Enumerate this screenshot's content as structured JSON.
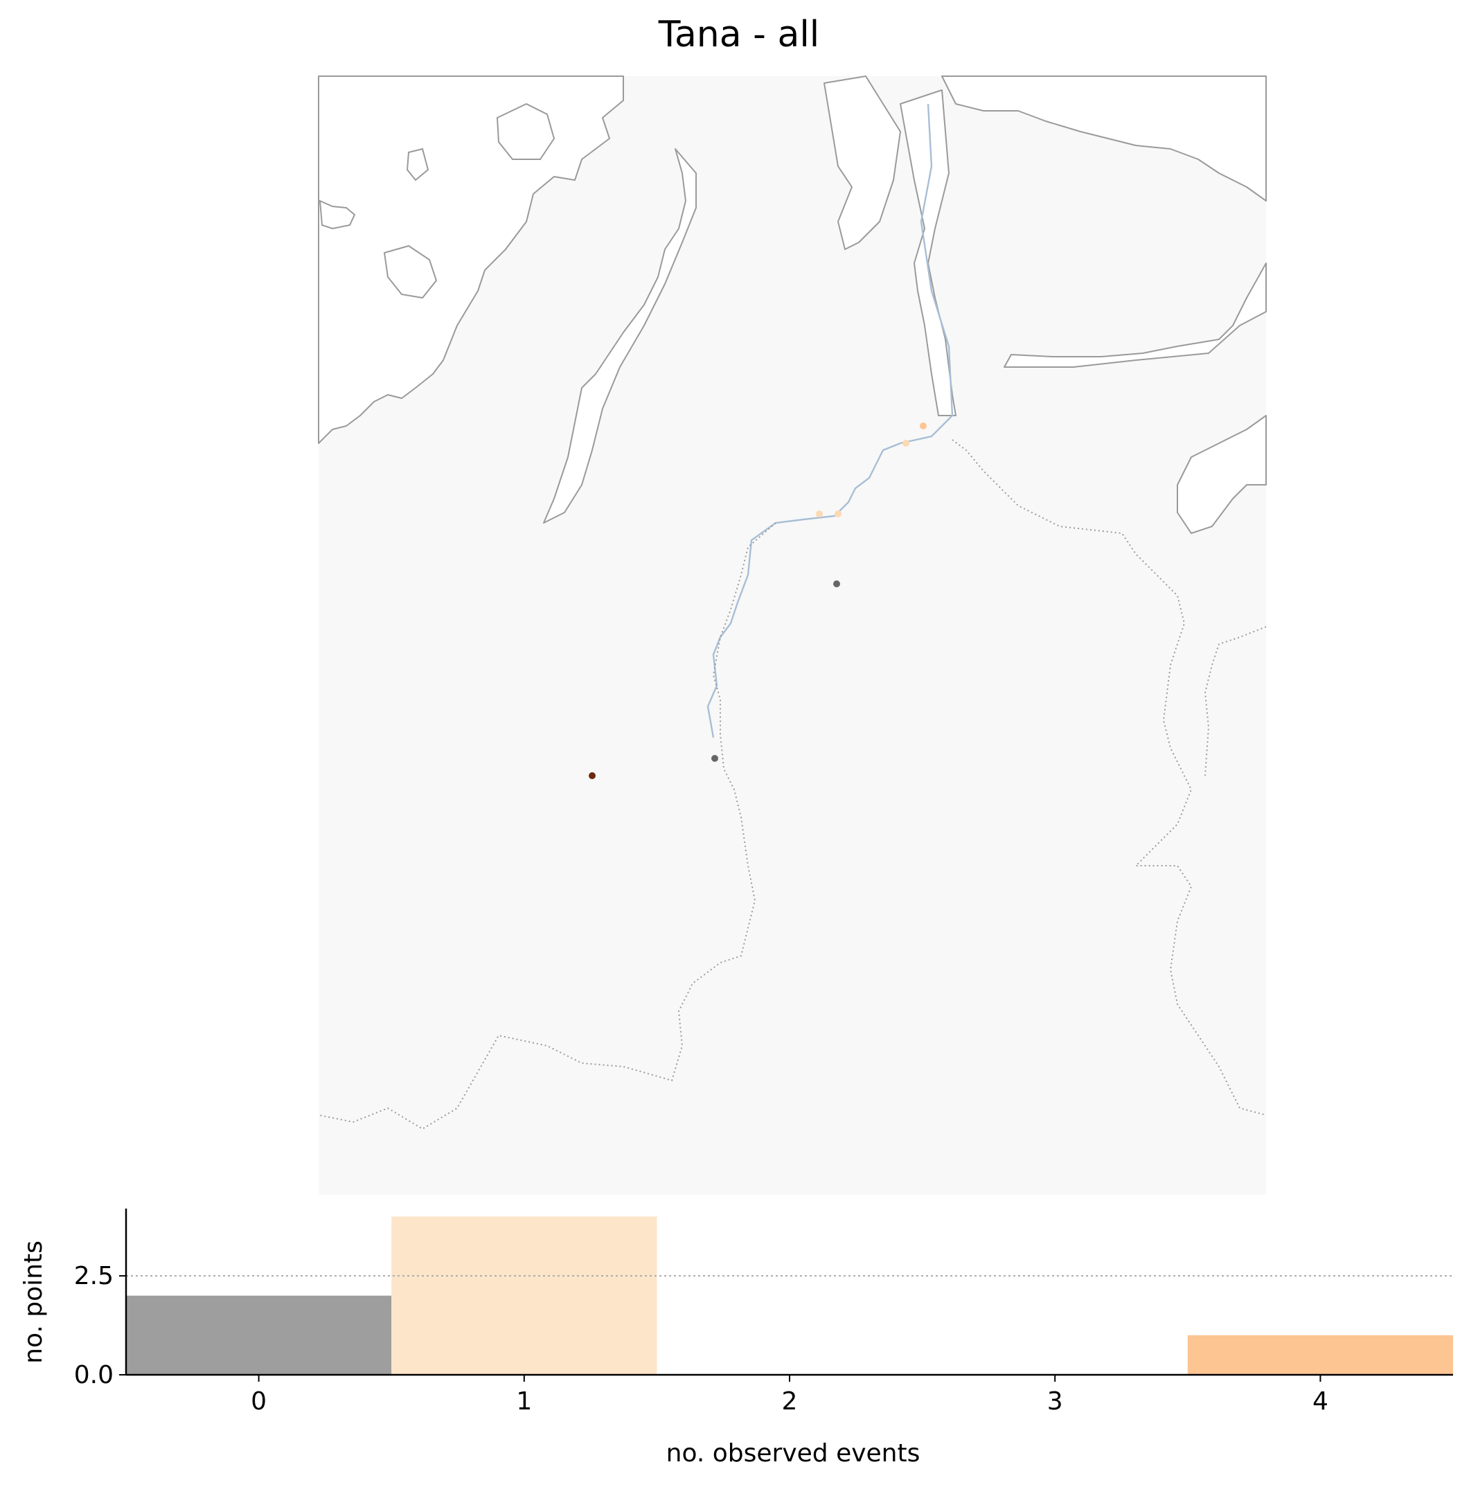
{
  "title": "Tana - all",
  "map": {
    "land_color": "#f8f8f8",
    "coast_color": "#9a9a9a",
    "river_color": "#a8bed6",
    "border_color": "#9a9a9a",
    "points": [
      {
        "observed_events": 1,
        "color": "#fdd9b3"
      },
      {
        "observed_events": 1,
        "color": "#fdd9b3"
      },
      {
        "observed_events": 1,
        "color": "#fdd9b3"
      },
      {
        "observed_events": 4,
        "color": "#fdc592"
      },
      {
        "observed_events": 0,
        "color": "#666666"
      },
      {
        "observed_events": 0,
        "color": "#666666"
      },
      {
        "observed_events": null,
        "color": "#6b2a0f"
      }
    ]
  },
  "chart_data": {
    "type": "bar",
    "categories": [
      "0",
      "1",
      "2",
      "3",
      "4"
    ],
    "values": [
      2,
      4,
      0,
      0,
      1
    ],
    "colors": [
      "#9e9e9e",
      "#fde5ca",
      "#fde5ca",
      "#fde5ca",
      "#fdc592"
    ],
    "xlabel": "no. observed events",
    "ylabel": "no. points",
    "xlim": [
      -0.5,
      4.5
    ],
    "ylim": [
      0,
      4.2
    ],
    "yticks": [
      "0.0",
      "2.5"
    ],
    "reference_line": 2.5
  }
}
